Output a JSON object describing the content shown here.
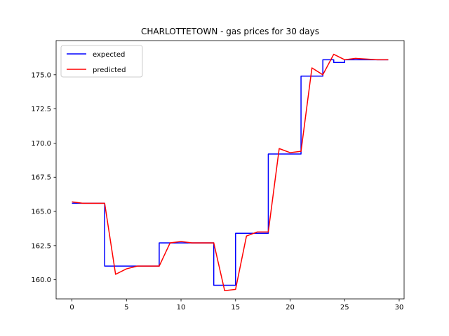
{
  "chart_data": {
    "type": "line",
    "title": "CHARLOTTETOWN - gas prices for 30 days",
    "xlabel": "",
    "ylabel": "",
    "xlim": [
      -1.45,
      30.45
    ],
    "ylim": [
      158.6,
      177.5
    ],
    "xticks": [
      0,
      5,
      10,
      15,
      20,
      25,
      30
    ],
    "yticks": [
      160.0,
      162.5,
      165.0,
      167.5,
      170.0,
      172.5,
      175.0
    ],
    "grid": false,
    "legend_position": "upper left",
    "series": [
      {
        "name": "expected",
        "color": "#0000ff",
        "style": "steps",
        "x": [
          0,
          1,
          2,
          3,
          4,
          5,
          6,
          7,
          8,
          9,
          10,
          11,
          12,
          13,
          14,
          15,
          16,
          17,
          18,
          19,
          20,
          21,
          22,
          23,
          24,
          25,
          26,
          27,
          28,
          29
        ],
        "values": [
          165.6,
          165.6,
          165.6,
          161.0,
          161.0,
          161.0,
          161.0,
          161.0,
          162.7,
          162.7,
          162.7,
          162.7,
          162.7,
          159.6,
          159.6,
          163.4,
          163.4,
          163.4,
          169.2,
          169.2,
          169.2,
          174.9,
          174.9,
          176.1,
          175.9,
          176.1,
          176.1,
          176.1,
          176.1,
          176.1
        ]
      },
      {
        "name": "predicted",
        "color": "#ff0000",
        "style": "line",
        "x": [
          0,
          1,
          2,
          3,
          4,
          5,
          6,
          7,
          8,
          9,
          10,
          11,
          12,
          13,
          14,
          15,
          16,
          17,
          18,
          19,
          20,
          21,
          22,
          23,
          24,
          25,
          26,
          27,
          28,
          29
        ],
        "values": [
          165.7,
          165.6,
          165.6,
          165.6,
          160.4,
          160.8,
          161.0,
          161.0,
          161.0,
          162.7,
          162.8,
          162.7,
          162.7,
          162.7,
          159.2,
          159.3,
          163.2,
          163.5,
          163.5,
          169.6,
          169.3,
          169.4,
          175.5,
          175.0,
          176.5,
          176.1,
          176.2,
          176.15,
          176.1,
          176.1
        ]
      }
    ]
  }
}
